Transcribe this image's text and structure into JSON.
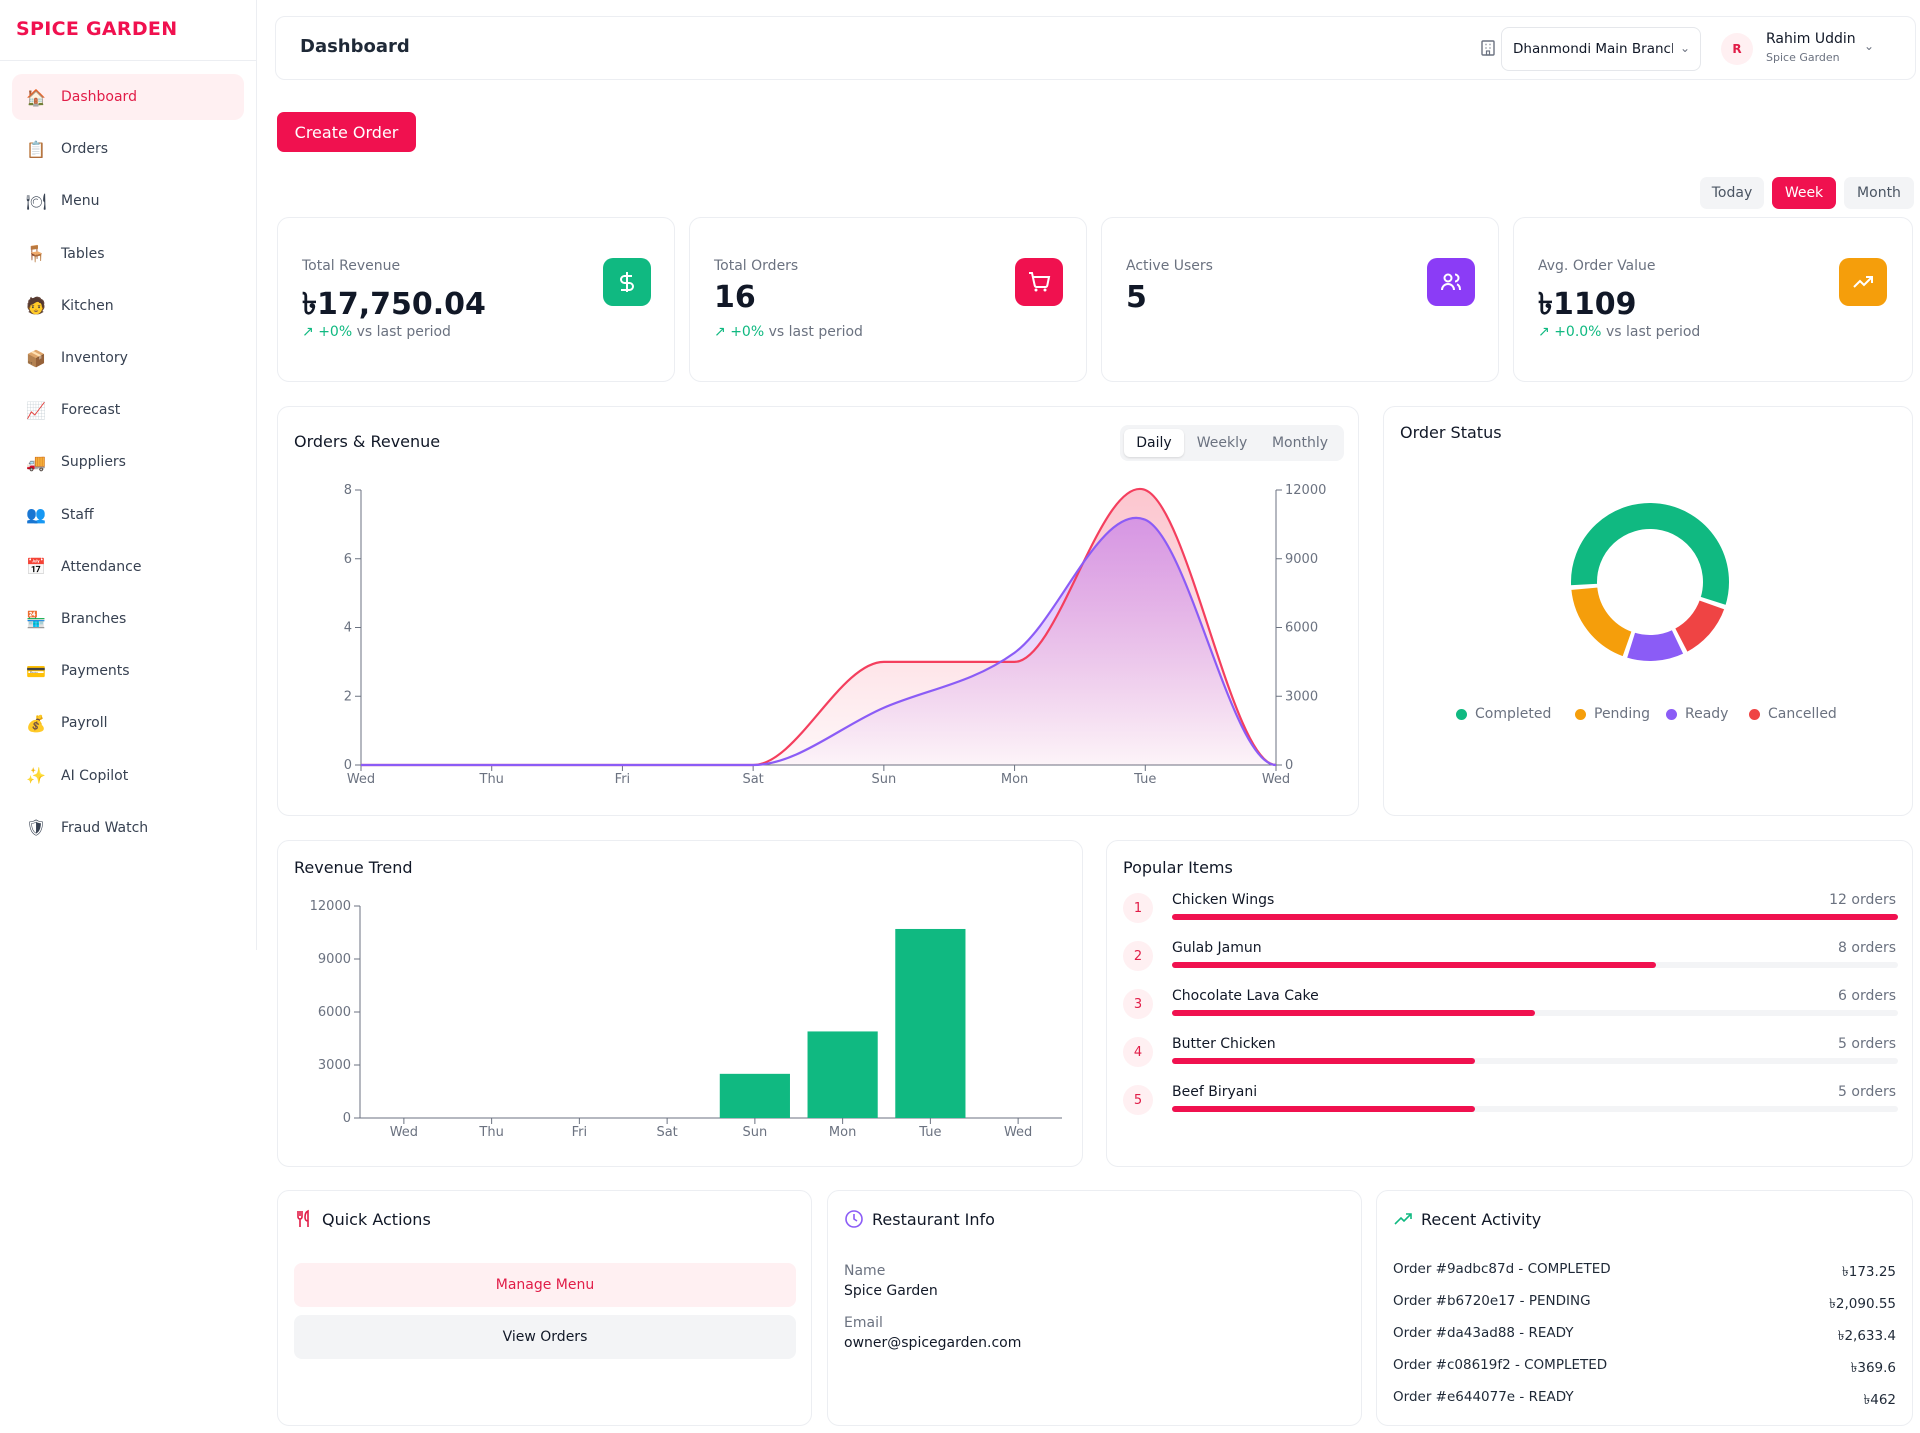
{
  "brand": "SPICE GARDEN",
  "sidebar": {
    "items": [
      {
        "label": "Dashboard",
        "icon": "house-icon",
        "glyph": "🏠",
        "active": true
      },
      {
        "label": "Orders",
        "icon": "clipboard-icon",
        "glyph": "📋"
      },
      {
        "label": "Menu",
        "icon": "menu-icon",
        "glyph": "🍽"
      },
      {
        "label": "Tables",
        "icon": "chair-icon",
        "glyph": "🪑"
      },
      {
        "label": "Kitchen",
        "icon": "chef-icon",
        "glyph": "🧑"
      },
      {
        "label": "Inventory",
        "icon": "package-icon",
        "glyph": "📦"
      },
      {
        "label": "Forecast",
        "icon": "chart-icon",
        "glyph": "📈"
      },
      {
        "label": "Suppliers",
        "icon": "truck-icon",
        "glyph": "🚚"
      },
      {
        "label": "Staff",
        "icon": "people-icon",
        "glyph": "👥"
      },
      {
        "label": "Attendance",
        "icon": "calendar-icon",
        "glyph": "📅"
      },
      {
        "label": "Branches",
        "icon": "store-icon",
        "glyph": "🏪"
      },
      {
        "label": "Payments",
        "icon": "credit-card-icon",
        "glyph": "💳"
      },
      {
        "label": "Payroll",
        "icon": "money-bag-icon",
        "glyph": "💰"
      },
      {
        "label": "AI Copilot",
        "icon": "sparkles-icon",
        "glyph": "✨"
      },
      {
        "label": "Fraud Watch",
        "icon": "shield-icon",
        "glyph": "🛡"
      }
    ]
  },
  "header": {
    "title": "Dashboard",
    "branch": "Dhanmondi Main Branch",
    "user_initial": "R",
    "user_name": "Rahim Uddin",
    "user_org": "Spice Garden"
  },
  "actions": {
    "create_order": "Create Order"
  },
  "period": {
    "options": [
      "Today",
      "Week",
      "Month"
    ],
    "selected": "Week"
  },
  "stats": [
    {
      "label": "Total Revenue",
      "value": "৳17,750.04",
      "delta": "+0%",
      "delta_suffix": " vs last period",
      "color": "#10b981",
      "icon": "dollar-icon"
    },
    {
      "label": "Total Orders",
      "value": "16",
      "delta": "+0%",
      "delta_suffix": " vs last period",
      "color": "#f0114f",
      "icon": "cart-icon"
    },
    {
      "label": "Active Users",
      "value": "5",
      "color": "#8b3cf6",
      "icon": "users-icon"
    },
    {
      "label": "Avg. Order Value",
      "value": "৳1109",
      "delta": "+0.0%",
      "delta_suffix": " vs last period",
      "color": "#f59e0b",
      "icon": "trending-up-icon"
    }
  ],
  "orders_revenue": {
    "title": "Orders & Revenue",
    "tabs": [
      "Daily",
      "Weekly",
      "Monthly"
    ],
    "selected_tab": "Daily"
  },
  "order_status": {
    "title": "Order Status",
    "legend": [
      {
        "name": "Completed",
        "color": "#10b981"
      },
      {
        "name": "Pending",
        "color": "#f59e0b"
      },
      {
        "name": "Ready",
        "color": "#8b5cf6"
      },
      {
        "name": "Cancelled",
        "color": "#ef4444"
      }
    ]
  },
  "revenue_trend": {
    "title": "Revenue Trend"
  },
  "popular_items": {
    "title": "Popular Items",
    "items": [
      {
        "rank": "1",
        "name": "Chicken Wings",
        "count_label": "12 orders",
        "count": 12
      },
      {
        "rank": "2",
        "name": "Gulab Jamun",
        "count_label": "8 orders",
        "count": 8
      },
      {
        "rank": "3",
        "name": "Chocolate Lava Cake",
        "count_label": "6 orders",
        "count": 6
      },
      {
        "rank": "4",
        "name": "Butter Chicken",
        "count_label": "5 orders",
        "count": 5
      },
      {
        "rank": "5",
        "name": "Beef Biryani",
        "count_label": "5 orders",
        "count": 5
      }
    ]
  },
  "quick_actions": {
    "title": "Quick Actions",
    "manage_menu": "Manage Menu",
    "view_orders": "View Orders"
  },
  "restaurant_info": {
    "title": "Restaurant Info",
    "name_label": "Name",
    "name": "Spice Garden",
    "email_label": "Email",
    "email": "owner@spicegarden.com"
  },
  "recent_activity": {
    "title": "Recent Activity",
    "rows": [
      {
        "text": "Order #9adbc87d - COMPLETED",
        "amount": "৳173.25"
      },
      {
        "text": "Order #b6720e17 - PENDING",
        "amount": "৳2,090.55"
      },
      {
        "text": "Order #da43ad88 - READY",
        "amount": "৳2,633.4"
      },
      {
        "text": "Order #c08619f2 - COMPLETED",
        "amount": "৳369.6"
      },
      {
        "text": "Order #e644077e - READY",
        "amount": "৳462"
      }
    ]
  },
  "chart_data": [
    {
      "type": "area",
      "title": "Orders & Revenue",
      "categories": [
        "Wed",
        "Thu",
        "Fri",
        "Sat",
        "Sun",
        "Mon",
        "Tue",
        "Wed"
      ],
      "series": [
        {
          "values": [
            0,
            0,
            0,
            0,
            3,
            3,
            8,
            0
          ],
          "axis": "left",
          "color": "#f43f5e"
        },
        {
          "values": [
            0,
            0,
            0,
            0,
            2500,
            4900,
            10700,
            0
          ],
          "axis": "right",
          "color": "#8b5cf6"
        }
      ],
      "ylim_left": [
        0,
        8
      ],
      "yticks_left": [
        "0",
        "2",
        "4",
        "6",
        "8"
      ],
      "ylim_right": [
        0,
        12000
      ],
      "yticks_right": [
        "0",
        "3000",
        "6000",
        "9000",
        "12000"
      ]
    },
    {
      "type": "pie",
      "title": "Order Status",
      "categories": [
        "Completed",
        "Cancelled",
        "Ready",
        "Pending"
      ],
      "values": [
        9,
        2,
        2,
        3
      ],
      "colors": [
        "#10b981",
        "#ef4444",
        "#8b5cf6",
        "#f59e0b"
      ]
    },
    {
      "type": "bar",
      "title": "Revenue Trend",
      "categories": [
        "Wed",
        "Thu",
        "Fri",
        "Sat",
        "Sun",
        "Mon",
        "Tue",
        "Wed"
      ],
      "values": [
        0,
        0,
        0,
        0,
        2500,
        4900,
        10700,
        0
      ],
      "ylim": [
        0,
        12000
      ],
      "yticks": [
        "0",
        "3000",
        "6000",
        "9000",
        "12000"
      ],
      "color": "#10b981"
    }
  ]
}
